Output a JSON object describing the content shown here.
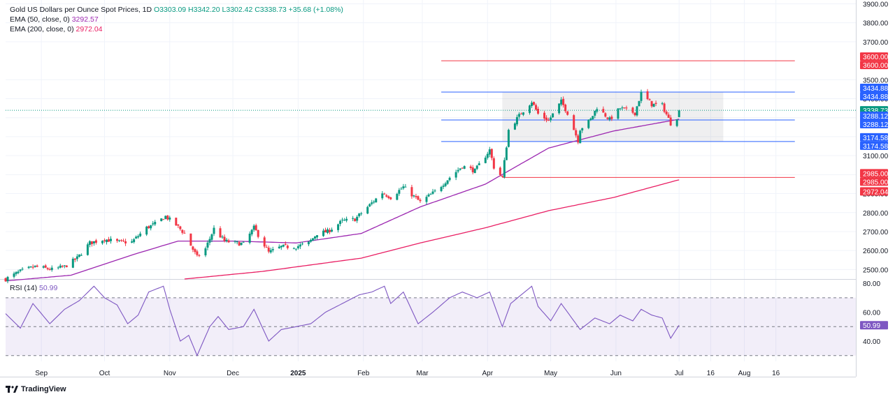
{
  "header": {
    "symbol": "Gold US Dollars per Ounce Spot Prices, 1D",
    "ohlc": "O3303.09 H3342.20 L3302.42 C3338.73 +35.68 (+1.08%)",
    "ema50_label": "EMA (50, close, 0)",
    "ema50_value": "3292.57",
    "ema200_label": "EMA (200, close, 0)",
    "ema200_value": "2972.04",
    "rsi_label": "RSI (14)",
    "rsi_value": "50.99"
  },
  "branding": {
    "name": "TradingView"
  },
  "colors": {
    "up": "#089981",
    "down": "#f23645",
    "ema50": "#9c27b0",
    "ema200": "#e91e63",
    "rsi": "#7e57c2",
    "hline_blue": "#2962ff",
    "hline_red": "#f23645",
    "axis_text": "#131722"
  },
  "chart_data": [
    {
      "type": "candlestick",
      "title": "Gold US Dollars per Ounce Spot Prices, 1D",
      "ylim": [
        2450,
        3920
      ],
      "y_ticks": [
        2500,
        2600,
        2700,
        2800,
        2900,
        3000,
        3100,
        3200,
        3300,
        3400,
        3500,
        3700,
        3800,
        3900
      ],
      "y_tick_labels": [
        "2500.00",
        "2600.00",
        "2700.00",
        "2800.00",
        "2900.00",
        "3000.00",
        "3100.00",
        "3200.00",
        "3300.00",
        "3400.00",
        "3500.00",
        "3700.00",
        "3800.00",
        "3900.00"
      ],
      "x_ticks": [
        {
          "label": "Sep",
          "date": "2024-09-01"
        },
        {
          "label": "Oct",
          "date": "2024-10-01"
        },
        {
          "label": "Nov",
          "date": "2024-11-01"
        },
        {
          "label": "Dec",
          "date": "2024-12-01"
        },
        {
          "label": "2025",
          "date": "2025-01-01"
        },
        {
          "label": "Feb",
          "date": "2025-02-01"
        },
        {
          "label": "Mar",
          "date": "2025-03-01"
        },
        {
          "label": "Apr",
          "date": "2025-04-01"
        },
        {
          "label": "May",
          "date": "2025-05-01"
        },
        {
          "label": "Jun",
          "date": "2025-06-01"
        },
        {
          "label": "Jul",
          "date": "2025-07-01"
        },
        {
          "label": "16",
          "date": "2025-07-16"
        },
        {
          "label": "Aug",
          "date": "2025-08-01"
        },
        {
          "label": "16",
          "date": "2025-08-16"
        }
      ],
      "close_anchors": [
        [
          "2024-08-15",
          2450
        ],
        [
          "2024-08-22",
          2490
        ],
        [
          "2024-08-29",
          2515
        ],
        [
          "2024-09-06",
          2500
        ],
        [
          "2024-09-12",
          2515
        ],
        [
          "2024-09-18",
          2560
        ],
        [
          "2024-09-24",
          2640
        ],
        [
          "2024-10-01",
          2660
        ],
        [
          "2024-10-07",
          2645
        ],
        [
          "2024-10-14",
          2645
        ],
        [
          "2024-10-21",
          2720
        ],
        [
          "2024-10-25",
          2740
        ],
        [
          "2024-10-30",
          2780
        ],
        [
          "2024-11-04",
          2735
        ],
        [
          "2024-11-08",
          2690
        ],
        [
          "2024-11-14",
          2565
        ],
        [
          "2024-11-18",
          2610
        ],
        [
          "2024-11-22",
          2715
        ],
        [
          "2024-11-27",
          2650
        ],
        [
          "2024-12-02",
          2640
        ],
        [
          "2024-12-06",
          2635
        ],
        [
          "2024-12-11",
          2720
        ],
        [
          "2024-12-18",
          2590
        ],
        [
          "2024-12-24",
          2620
        ],
        [
          "2024-12-31",
          2620
        ],
        [
          "2025-01-06",
          2640
        ],
        [
          "2025-01-10",
          2690
        ],
        [
          "2025-01-15",
          2700
        ],
        [
          "2025-01-22",
          2755
        ],
        [
          "2025-01-28",
          2765
        ],
        [
          "2025-02-04",
          2840
        ],
        [
          "2025-02-10",
          2905
        ],
        [
          "2025-02-14",
          2880
        ],
        [
          "2025-02-20",
          2935
        ],
        [
          "2025-02-28",
          2855
        ],
        [
          "2025-03-07",
          2910
        ],
        [
          "2025-03-14",
          2985
        ],
        [
          "2025-03-20",
          3045
        ],
        [
          "2025-03-26",
          3020
        ],
        [
          "2025-04-02",
          3130
        ],
        [
          "2025-04-04",
          3040
        ],
        [
          "2025-04-08",
          2985
        ],
        [
          "2025-04-11",
          3235
        ],
        [
          "2025-04-17",
          3325
        ],
        [
          "2025-04-22",
          3385
        ],
        [
          "2025-04-25",
          3320
        ],
        [
          "2025-04-30",
          3285
        ],
        [
          "2025-05-06",
          3385
        ],
        [
          "2025-05-09",
          3325
        ],
        [
          "2025-05-14",
          3180
        ],
        [
          "2025-05-15",
          3240
        ],
        [
          "2025-05-20",
          3290
        ],
        [
          "2025-05-23",
          3355
        ],
        [
          "2025-05-29",
          3290
        ],
        [
          "2025-06-03",
          3350
        ],
        [
          "2025-06-10",
          3325
        ],
        [
          "2025-06-13",
          3430
        ],
        [
          "2025-06-18",
          3370
        ],
        [
          "2025-06-23",
          3365
        ],
        [
          "2025-06-27",
          3270
        ],
        [
          "2025-06-30",
          3303
        ],
        [
          "2025-07-01",
          3338.73
        ]
      ],
      "last_candle": {
        "open": 3303.09,
        "high": 3342.2,
        "low": 3302.42,
        "close": 3338.73,
        "change": 35.68,
        "change_pct": 1.08
      },
      "ema50": {
        "name": "EMA (50, close, 0)",
        "last": 3292.57,
        "anchors": [
          [
            "2024-08-15",
            2440
          ],
          [
            "2024-09-15",
            2470
          ],
          [
            "2024-10-15",
            2580
          ],
          [
            "2024-11-05",
            2650
          ],
          [
            "2024-12-01",
            2650
          ],
          [
            "2024-12-31",
            2640
          ],
          [
            "2025-01-31",
            2690
          ],
          [
            "2025-02-28",
            2830
          ],
          [
            "2025-03-31",
            2950
          ],
          [
            "2025-04-30",
            3140
          ],
          [
            "2025-05-31",
            3230
          ],
          [
            "2025-06-30",
            3290
          ],
          [
            "2025-07-01",
            3292.57
          ]
        ]
      },
      "ema200": {
        "name": "EMA (200, close, 0)",
        "last": 2972.04,
        "anchors": [
          [
            "2024-11-08",
            2450
          ],
          [
            "2024-12-15",
            2490
          ],
          [
            "2025-01-31",
            2560
          ],
          [
            "2025-02-28",
            2640
          ],
          [
            "2025-03-31",
            2720
          ],
          [
            "2025-04-30",
            2810
          ],
          [
            "2025-05-31",
            2880
          ],
          [
            "2025-06-30",
            2970
          ],
          [
            "2025-07-01",
            2972.04
          ]
        ]
      },
      "horizontal_lines": [
        {
          "value": 3600.0,
          "label": "3600.00",
          "color": "red",
          "from": "2025-03-10",
          "to": "2025-08-25"
        },
        {
          "value": 3434.88,
          "label": "3434.88",
          "color": "blue",
          "from": "2025-03-10",
          "to": "2025-08-25"
        },
        {
          "value": 3288.12,
          "label": "3288.12",
          "color": "blue",
          "from": "2025-03-10",
          "to": "2025-08-25"
        },
        {
          "value": 3174.58,
          "label": "3174.58",
          "color": "blue",
          "from": "2025-03-10",
          "to": "2025-08-25"
        },
        {
          "value": 2985.0,
          "label": "2985.00",
          "color": "red",
          "from": "2025-04-08",
          "to": "2025-08-25"
        }
      ],
      "range_box": {
        "from": "2025-04-08",
        "to": "2025-07-22",
        "low": 3174.58,
        "high": 3434.88
      },
      "price_labels": [
        {
          "value": 3600.0,
          "label": "3600.00",
          "color": "red"
        },
        {
          "value": 3600.0,
          "label": "3600.00",
          "color": "red"
        },
        {
          "value": 3434.88,
          "label": "3434.88",
          "color": "blue"
        },
        {
          "value": 3434.88,
          "label": "3434.88",
          "color": "blue"
        },
        {
          "value": 3338.73,
          "label": "3338.73",
          "color": "green"
        },
        {
          "value": 3292.57,
          "label": "3292.57",
          "color": "purple"
        },
        {
          "value": 3288.12,
          "label": "3288.12",
          "color": "blue"
        },
        {
          "value": 3288.12,
          "label": "3288.12",
          "color": "blue"
        },
        {
          "value": 3174.58,
          "label": "3174.58",
          "color": "blue"
        },
        {
          "value": 3174.58,
          "label": "3174.58",
          "color": "blue"
        },
        {
          "value": 2985.0,
          "label": "2985.00",
          "color": "red"
        },
        {
          "value": 2985.0,
          "label": "2985.00",
          "color": "red"
        },
        {
          "value": 2972.04,
          "label": "2972.04",
          "color": "red"
        }
      ]
    },
    {
      "type": "line",
      "title": "RSI (14)",
      "ylim": [
        26,
        82
      ],
      "y_ticks": [
        40,
        60,
        80
      ],
      "y_tick_labels": [
        "40.00",
        "60.00",
        "80.00"
      ],
      "band": [
        30,
        70
      ],
      "midline": 50,
      "last": 50.99,
      "last_label": "50.99",
      "anchors": [
        [
          "2024-08-15",
          59
        ],
        [
          "2024-08-22",
          49
        ],
        [
          "2024-08-28",
          66
        ],
        [
          "2024-09-05",
          52
        ],
        [
          "2024-09-12",
          62
        ],
        [
          "2024-09-19",
          68
        ],
        [
          "2024-09-26",
          78
        ],
        [
          "2024-10-01",
          70
        ],
        [
          "2024-10-07",
          65
        ],
        [
          "2024-10-12",
          52
        ],
        [
          "2024-10-17",
          58
        ],
        [
          "2024-10-22",
          74
        ],
        [
          "2024-10-29",
          78
        ],
        [
          "2024-11-01",
          62
        ],
        [
          "2024-11-06",
          40
        ],
        [
          "2024-11-10",
          44
        ],
        [
          "2024-11-14",
          30
        ],
        [
          "2024-11-20",
          50
        ],
        [
          "2024-11-24",
          57
        ],
        [
          "2024-11-29",
          48
        ],
        [
          "2024-12-06",
          50
        ],
        [
          "2024-12-11",
          62
        ],
        [
          "2024-12-18",
          40
        ],
        [
          "2024-12-24",
          48
        ],
        [
          "2024-12-31",
          50
        ],
        [
          "2025-01-07",
          52
        ],
        [
          "2025-01-14",
          60
        ],
        [
          "2025-01-22",
          66
        ],
        [
          "2025-01-30",
          72
        ],
        [
          "2025-02-05",
          74
        ],
        [
          "2025-02-11",
          78
        ],
        [
          "2025-02-14",
          66
        ],
        [
          "2025-02-20",
          74
        ],
        [
          "2025-02-27",
          52
        ],
        [
          "2025-03-06",
          60
        ],
        [
          "2025-03-14",
          70
        ],
        [
          "2025-03-20",
          74
        ],
        [
          "2025-03-27",
          70
        ],
        [
          "2025-04-02",
          74
        ],
        [
          "2025-04-08",
          50
        ],
        [
          "2025-04-12",
          66
        ],
        [
          "2025-04-17",
          72
        ],
        [
          "2025-04-22",
          78
        ],
        [
          "2025-04-25",
          64
        ],
        [
          "2025-05-01",
          54
        ],
        [
          "2025-05-06",
          66
        ],
        [
          "2025-05-10",
          58
        ],
        [
          "2025-05-15",
          48
        ],
        [
          "2025-05-22",
          56
        ],
        [
          "2025-05-29",
          52
        ],
        [
          "2025-06-03",
          58
        ],
        [
          "2025-06-09",
          54
        ],
        [
          "2025-06-13",
          62
        ],
        [
          "2025-06-18",
          58
        ],
        [
          "2025-06-23",
          56
        ],
        [
          "2025-06-27",
          42
        ],
        [
          "2025-07-01",
          50.99
        ]
      ]
    }
  ]
}
